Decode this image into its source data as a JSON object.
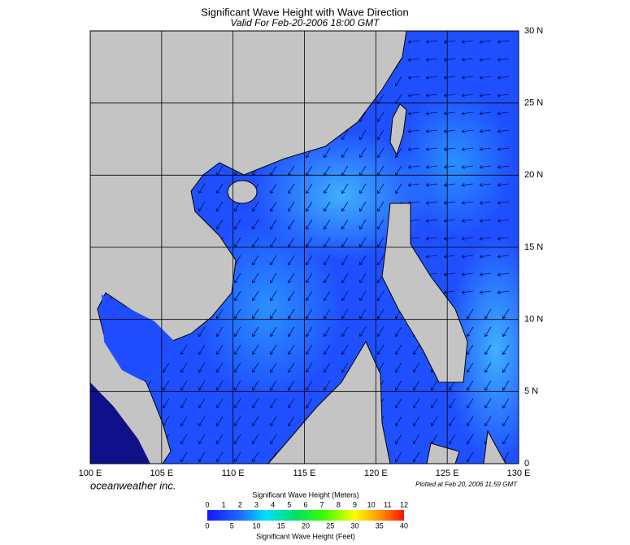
{
  "map": {
    "title": "Significant Wave Height with Wave Direction",
    "subtitle": "Valid For Feb-20-2006 18:00 GMT",
    "lon_labels": [
      "100 E",
      "105 E",
      "110 E",
      "115 E",
      "120 E",
      "125 E",
      "130 E"
    ],
    "lat_labels": [
      "30 N",
      "25 N",
      "20 N",
      "15 N",
      "10 N",
      "5 N",
      "0"
    ],
    "credit": "oceanweather inc.",
    "plotted": "Plotted at Feb 20, 2006 11:59 GMT"
  },
  "legend": {
    "meters_title": "Significant Wave Height (Meters)",
    "meters_ticks": [
      0,
      1,
      2,
      3,
      4,
      5,
      6,
      7,
      8,
      9,
      10,
      11,
      12
    ],
    "feet_title": "Significant Wave Height (Feet)",
    "feet_ticks": [
      0,
      5,
      10,
      15,
      20,
      25,
      30,
      35,
      40
    ]
  }
}
